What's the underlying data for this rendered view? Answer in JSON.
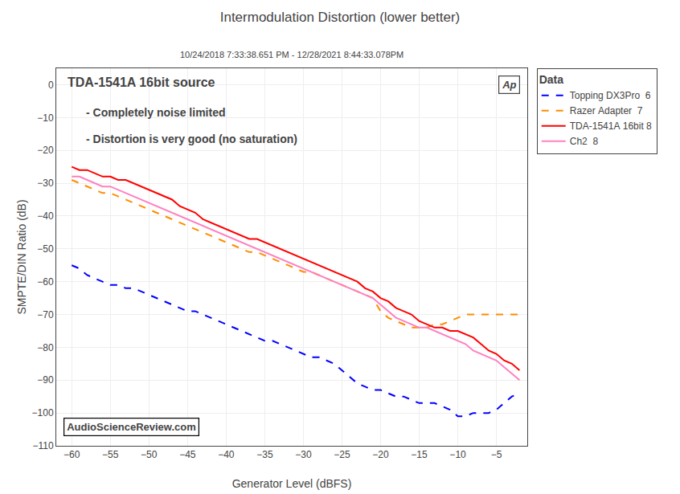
{
  "chart_data": {
    "type": "line",
    "title": "Intermodulation Distortion (lower better)",
    "subtitle": "10/24/2018 7:33:38.651 PM - 12/28/2021 8:44:33.078PM",
    "x_label": "Generator Level (dBFS)",
    "y_label": "SMPTE/DIN Ratio (dB)",
    "annotations": [
      "TDA-1541A 16bit source",
      "- Completely noise limited",
      "- Distortion is very good (no saturation)"
    ],
    "watermark": "AudioScienceReview.com",
    "logo": "Ap",
    "legend_title": "Data",
    "legend": "right",
    "grid": true,
    "xlim": [
      -62,
      -1
    ],
    "ylim": [
      -110,
      5
    ],
    "xticks": [
      -60,
      -55,
      -50,
      -45,
      -40,
      -35,
      -30,
      -25,
      -20,
      -15,
      -10,
      -5
    ],
    "yticks": [
      0,
      -10,
      -20,
      -30,
      -40,
      -50,
      -60,
      -70,
      -80,
      -90,
      -100,
      -110
    ],
    "x": [
      -60,
      -59,
      -58,
      -57,
      -56,
      -55,
      -54,
      -53,
      -52,
      -51,
      -50,
      -49,
      -48,
      -47,
      -46,
      -45,
      -44,
      -43,
      -42,
      -41,
      -40,
      -39,
      -38,
      -37,
      -36,
      -35,
      -34,
      -33,
      -32,
      -31,
      -30,
      -29,
      -28,
      -27,
      -26,
      -25,
      -24,
      -23,
      -22,
      -21,
      -20,
      -19,
      -18,
      -17,
      -16,
      -15,
      -14,
      -13,
      -12,
      -11,
      -10,
      -9,
      -8,
      -7,
      -6,
      -5,
      -4,
      -3,
      -2
    ],
    "series": [
      {
        "name": "Topping DX3Pro  6",
        "color": "#0000FF",
        "line_style": "dashed",
        "values": [
          -55,
          -56,
          -58,
          -59,
          -60,
          -61,
          -61,
          -62,
          -62,
          -63,
          -64,
          -65,
          -66,
          -67,
          -68,
          -69,
          -69,
          -70,
          -71,
          -72,
          -73,
          -74,
          -75,
          -76,
          -77,
          -78,
          -78,
          -79,
          -80,
          -81,
          -82,
          -83,
          -83,
          -84,
          -85,
          -87,
          -89,
          -91,
          -92,
          -93,
          -93,
          -94,
          -95,
          -95,
          -96,
          -97,
          -97,
          -97,
          -98,
          -99,
          -101,
          -101,
          -100,
          -100,
          -100,
          -99,
          -97,
          -95,
          -94
        ]
      },
      {
        "name": "Razer Adapter  7",
        "color": "#FF8C00",
        "line_style": "dashed",
        "values": [
          -29,
          -30,
          -31,
          -32,
          -33,
          -33,
          -34,
          -35,
          -36,
          -37,
          -38,
          -39,
          -40,
          -41,
          -42,
          -43,
          -44,
          -45,
          -46,
          -47,
          -48,
          -49,
          -50,
          -51,
          -51,
          -52,
          -53,
          -54,
          -55,
          -56,
          -57,
          -57,
          -58,
          -59,
          -60,
          -61,
          -62,
          -63,
          -64,
          -65,
          -69,
          -71,
          -72,
          -73,
          -74,
          -74,
          -74,
          -73,
          -73,
          -72,
          -71,
          -70,
          -70,
          -70,
          -70,
          -70,
          -70,
          -70,
          -70
        ]
      },
      {
        "name": "TDA-1541A 16bit 8",
        "color": "#FF0000",
        "line_style": "solid",
        "values": [
          -25,
          -26,
          -26,
          -27,
          -28,
          -28,
          -29,
          -29,
          -30,
          -31,
          -32,
          -33,
          -34,
          -35,
          -37,
          -38,
          -39,
          -41,
          -42,
          -43,
          -44,
          -45,
          -46,
          -47,
          -47,
          -48,
          -49,
          -50,
          -51,
          -52,
          -53,
          -54,
          -55,
          -56,
          -57,
          -58,
          -59,
          -60,
          -62,
          -63,
          -65,
          -66,
          -68,
          -69,
          -70,
          -72,
          -73,
          -74,
          -74,
          -75,
          -75,
          -76,
          -77,
          -79,
          -81,
          -82,
          -84,
          -85,
          -87
        ]
      },
      {
        "name": "Ch2  8",
        "color": "#FF80C0",
        "line_style": "solid",
        "values": [
          -28,
          -28,
          -29,
          -30,
          -31,
          -31,
          -32,
          -33,
          -34,
          -35,
          -36,
          -37,
          -38,
          -39,
          -40,
          -41,
          -42,
          -43,
          -44,
          -45,
          -46,
          -47,
          -48,
          -49,
          -50,
          -51,
          -52,
          -53,
          -54,
          -55,
          -56,
          -57,
          -58,
          -59,
          -60,
          -61,
          -62,
          -63,
          -64,
          -65,
          -67,
          -69,
          -71,
          -72,
          -73,
          -74,
          -74,
          -75,
          -76,
          -77,
          -78,
          -79,
          -81,
          -82,
          -83,
          -84,
          -86,
          -88,
          -90
        ]
      }
    ]
  }
}
